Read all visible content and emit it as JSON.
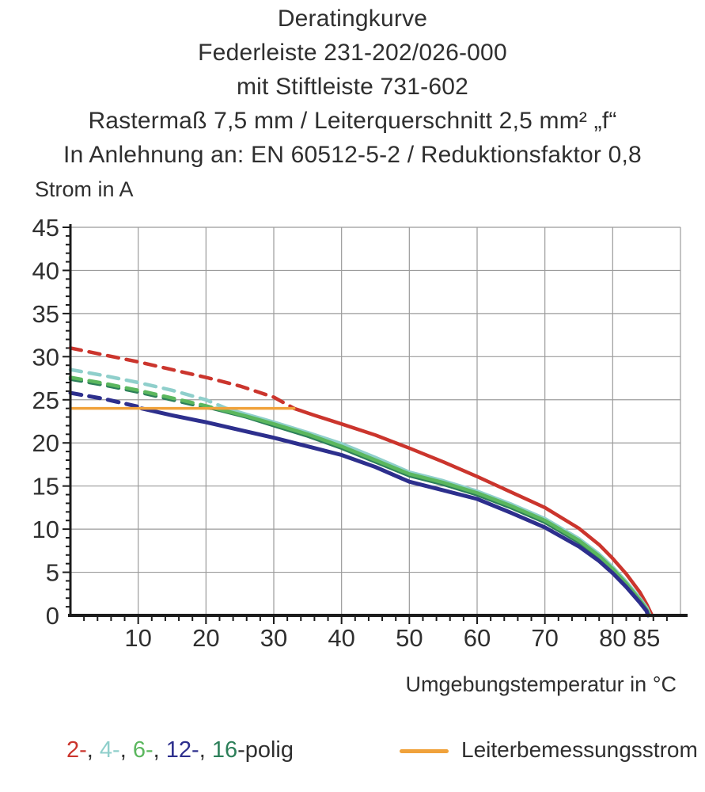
{
  "title": {
    "lines": [
      "Deratingkurve",
      "Federleiste 231-202/026-000",
      "mit Stiftleiste 731-602",
      "Rastermaß 7,5 mm / Leiterquerschnitt 2,5 mm² „f“",
      "In Anlehnung an: EN 60512-5-2 / Reduktionsfaktor 0,8"
    ]
  },
  "chart_data": {
    "type": "line",
    "title": "Deratingkurve",
    "ylabel": "Strom in A",
    "xlabel": "Umgebungstemperatur in °C",
    "xlim": [
      0,
      90
    ],
    "ylim": [
      0,
      45
    ],
    "grid": true,
    "x_gridline_step": 10,
    "y_gridline_step": 5,
    "x_minor_tick_step": 2,
    "y_minor_tick_step": 1,
    "x_tick_labels": [
      10,
      20,
      30,
      40,
      50,
      60,
      70,
      80,
      85
    ],
    "y_tick_labels": [
      0,
      5,
      10,
      15,
      20,
      25,
      30,
      35,
      40,
      45
    ],
    "gridline_color": "#9b9b9b",
    "axis_color": "#1c1c1c",
    "series": [
      {
        "name": "2-polig",
        "color": "#CB352D",
        "dashed": [
          [
            0,
            31
          ],
          [
            5,
            30.2
          ],
          [
            10,
            29.4
          ],
          [
            15,
            28.5
          ],
          [
            20,
            27.6
          ],
          [
            25,
            26.6
          ],
          [
            30,
            25.3
          ],
          [
            33,
            24
          ]
        ],
        "solid": [
          [
            33,
            24
          ],
          [
            36,
            23.2
          ],
          [
            40,
            22.2
          ],
          [
            45,
            20.9
          ],
          [
            50,
            19.4
          ],
          [
            55,
            17.8
          ],
          [
            60,
            16.1
          ],
          [
            65,
            14.3
          ],
          [
            70,
            12.5
          ],
          [
            75,
            10.1
          ],
          [
            78,
            8.2
          ],
          [
            80,
            6.6
          ],
          [
            82,
            4.8
          ],
          [
            84,
            2.7
          ],
          [
            85,
            1.3
          ],
          [
            85.8,
            0
          ]
        ]
      },
      {
        "name": "4-polig",
        "color": "#8FCFCB",
        "dashed": [
          [
            0,
            28.5
          ],
          [
            5,
            27.8
          ],
          [
            10,
            27
          ],
          [
            15,
            26.1
          ],
          [
            20,
            25
          ],
          [
            23,
            24
          ]
        ],
        "solid": [
          [
            23,
            24
          ],
          [
            26,
            23.3
          ],
          [
            30,
            22.4
          ],
          [
            35,
            21.2
          ],
          [
            40,
            19.9
          ],
          [
            45,
            18.3
          ],
          [
            50,
            16.6
          ],
          [
            55,
            15.6
          ],
          [
            60,
            14.4
          ],
          [
            65,
            12.9
          ],
          [
            70,
            11.2
          ],
          [
            75,
            8.9
          ],
          [
            78,
            7.1
          ],
          [
            80,
            5.6
          ],
          [
            82,
            3.9
          ],
          [
            84,
            2
          ],
          [
            85,
            0.9
          ],
          [
            85.5,
            0
          ]
        ]
      },
      {
        "name": "6-polig",
        "color": "#5BB75E",
        "dashed": [
          [
            0,
            27.6
          ],
          [
            5,
            26.9
          ],
          [
            10,
            26.1
          ],
          [
            15,
            25.2
          ],
          [
            20,
            24.3
          ],
          [
            21.5,
            24
          ]
        ],
        "solid": [
          [
            21.5,
            24
          ],
          [
            26,
            23.1
          ],
          [
            30,
            22.2
          ],
          [
            35,
            21
          ],
          [
            40,
            19.6
          ],
          [
            45,
            18
          ],
          [
            50,
            16.4
          ],
          [
            55,
            15.4
          ],
          [
            60,
            14.2
          ],
          [
            65,
            12.7
          ],
          [
            70,
            11
          ],
          [
            75,
            8.7
          ],
          [
            78,
            6.9
          ],
          [
            80,
            5.4
          ],
          [
            82,
            3.7
          ],
          [
            84,
            1.8
          ],
          [
            85,
            0.7
          ],
          [
            85.4,
            0
          ]
        ]
      },
      {
        "name": "12-polig",
        "color": "#2D2F8D",
        "dashed": [
          [
            0,
            25.8
          ],
          [
            5,
            25.1
          ],
          [
            10,
            24.2
          ],
          [
            10.5,
            24
          ]
        ],
        "solid": [
          [
            10.5,
            24
          ],
          [
            15,
            23.2
          ],
          [
            20,
            22.4
          ],
          [
            25,
            21.5
          ],
          [
            30,
            20.6
          ],
          [
            35,
            19.6
          ],
          [
            40,
            18.6
          ],
          [
            45,
            17.2
          ],
          [
            50,
            15.5
          ],
          [
            55,
            14.5
          ],
          [
            60,
            13.5
          ],
          [
            65,
            11.9
          ],
          [
            70,
            10.2
          ],
          [
            75,
            8
          ],
          [
            78,
            6.3
          ],
          [
            80,
            4.9
          ],
          [
            82,
            3.3
          ],
          [
            84,
            1.5
          ],
          [
            85,
            0.5
          ],
          [
            85.2,
            0
          ]
        ]
      },
      {
        "name": "16-polig",
        "color": "#2C7F59",
        "dashed": [
          [
            0,
            27.4
          ],
          [
            5,
            26.7
          ],
          [
            10,
            25.9
          ],
          [
            15,
            25
          ],
          [
            20,
            24.1
          ],
          [
            21,
            24
          ]
        ],
        "solid": [
          [
            21,
            24
          ],
          [
            26,
            23
          ],
          [
            30,
            22
          ],
          [
            35,
            20.8
          ],
          [
            40,
            19.4
          ],
          [
            45,
            17.8
          ],
          [
            50,
            16.2
          ],
          [
            55,
            15.2
          ],
          [
            60,
            14
          ],
          [
            65,
            12.5
          ],
          [
            70,
            10.8
          ],
          [
            75,
            8.5
          ],
          [
            78,
            6.7
          ],
          [
            80,
            5.2
          ],
          [
            82,
            3.5
          ],
          [
            84,
            1.6
          ],
          [
            85,
            0.6
          ],
          [
            85.3,
            0
          ]
        ]
      }
    ],
    "rated_current_line": {
      "label": "Leiterbemessungsstrom",
      "current": 24,
      "x_start": 0,
      "x_end": 33,
      "color": "#F0A23B"
    }
  },
  "legend": {
    "poles": [
      {
        "label": "2-",
        "color": "#CB352D"
      },
      {
        "label": "4-",
        "color": "#8FCFCB"
      },
      {
        "label": "6-",
        "color": "#5BB75E"
      },
      {
        "label": "12-",
        "color": "#2D2F8D"
      },
      {
        "label": "16",
        "color": "#2C7F59"
      }
    ],
    "separator": ", ",
    "suffix": "-polig",
    "rated_label": "Leiterbemessungsstrom",
    "rated_color": "#F0A23B"
  }
}
